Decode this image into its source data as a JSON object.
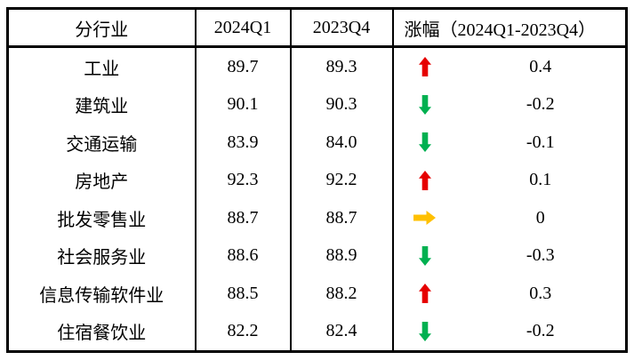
{
  "table": {
    "headers": {
      "industry": "分行业",
      "q1_2024": "2024Q1",
      "q4_2023": "2023Q4",
      "change": "涨幅（2024Q1-2023Q4）"
    },
    "rows": [
      {
        "industry": "工业",
        "q1_2024": "89.7",
        "q4_2023": "89.3",
        "trend": "up",
        "icon": "up-arrow-icon",
        "change": "0.4"
      },
      {
        "industry": "建筑业",
        "q1_2024": "90.1",
        "q4_2023": "90.3",
        "trend": "down",
        "icon": "down-arrow-icon",
        "change": "-0.2"
      },
      {
        "industry": "交通运输",
        "q1_2024": "83.9",
        "q4_2023": "84.0",
        "trend": "down",
        "icon": "down-arrow-icon",
        "change": "-0.1"
      },
      {
        "industry": "房地产",
        "q1_2024": "92.3",
        "q4_2023": "92.2",
        "trend": "up",
        "icon": "up-arrow-icon",
        "change": "0.1"
      },
      {
        "industry": "批发零售业",
        "q1_2024": "88.7",
        "q4_2023": "88.7",
        "trend": "flat",
        "icon": "right-arrow-icon",
        "change": "0"
      },
      {
        "industry": "社会服务业",
        "q1_2024": "88.6",
        "q4_2023": "88.9",
        "trend": "down",
        "icon": "down-arrow-icon",
        "change": "-0.3"
      },
      {
        "industry": "信息传输软件业",
        "q1_2024": "88.5",
        "q4_2023": "88.2",
        "trend": "up",
        "icon": "up-arrow-icon",
        "change": "0.3"
      },
      {
        "industry": "住宿餐饮业",
        "q1_2024": "82.2",
        "q4_2023": "82.4",
        "trend": "down",
        "icon": "down-arrow-icon",
        "change": "-0.2"
      }
    ]
  },
  "colors": {
    "up_arrow": "#e60000",
    "down_arrow": "#00b050",
    "flat_arrow": "#ffc000",
    "border": "#000000",
    "text": "#000000",
    "background": "#ffffff"
  },
  "chart_data": {
    "type": "table",
    "columns": [
      "分行业",
      "2024Q1",
      "2023Q4",
      "涨幅（2024Q1-2023Q4）"
    ],
    "rows": [
      [
        "工业",
        89.7,
        89.3,
        0.4
      ],
      [
        "建筑业",
        90.1,
        90.3,
        -0.2
      ],
      [
        "交通运输",
        83.9,
        84.0,
        -0.1
      ],
      [
        "房地产",
        92.3,
        92.2,
        0.1
      ],
      [
        "批发零售业",
        88.7,
        88.7,
        0
      ],
      [
        "社会服务业",
        88.6,
        88.9,
        -0.3
      ],
      [
        "信息传输软件业",
        88.5,
        88.2,
        0.3
      ],
      [
        "住宿餐饮业",
        82.2,
        82.4,
        -0.2
      ]
    ],
    "trend_indicators": [
      "up",
      "down",
      "down",
      "up",
      "flat",
      "down",
      "up",
      "down"
    ],
    "notes": "up = red block arrow, down = green block arrow, flat = yellow right block arrow"
  }
}
